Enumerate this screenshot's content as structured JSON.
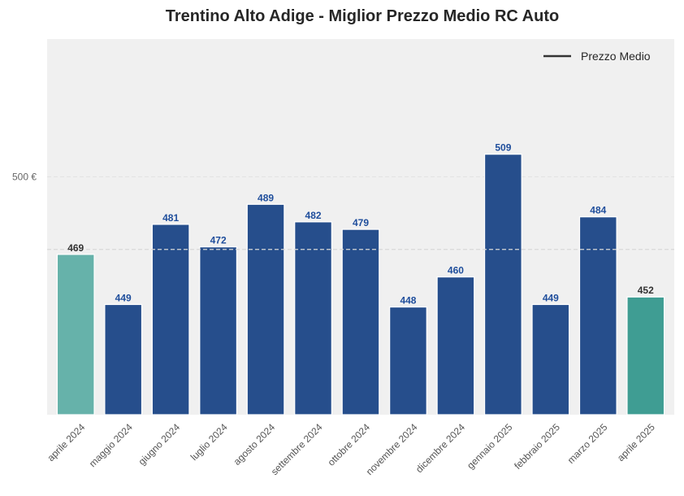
{
  "chart_data": {
    "type": "bar",
    "title": "Trentino Alto Adige - Miglior Prezzo Medio RC Auto",
    "xlabel": "",
    "ylabel": "",
    "categories": [
      "aprile 2024",
      "maggio 2024",
      "giugno 2024",
      "luglio 2024",
      "agosto 2024",
      "settembre 2024",
      "ottobre 2024",
      "novembre 2024",
      "dicembre 2024",
      "gennaio 2025",
      "febbraio 2025",
      "marzo 2025",
      "aprile 2025"
    ],
    "values": [
      469,
      449,
      481,
      472,
      489,
      482,
      479,
      448,
      460,
      509,
      449,
      484,
      452
    ],
    "value_labels": [
      "469",
      "449",
      "481",
      "472",
      "489",
      "482",
      "479",
      "448",
      "460",
      "509",
      "449",
      "484",
      "452"
    ],
    "bar_colors": [
      "#66b2aa",
      "#264e8c",
      "#264e8c",
      "#264e8c",
      "#264e8c",
      "#264e8c",
      "#264e8c",
      "#264e8c",
      "#264e8c",
      "#264e8c",
      "#264e8c",
      "#264e8c",
      "#3f9d93"
    ],
    "label_colors": [
      "#333333",
      "#1f4e9c",
      "#1f4e9c",
      "#1f4e9c",
      "#1f4e9c",
      "#1f4e9c",
      "#1f4e9c",
      "#1f4e9c",
      "#1f4e9c",
      "#1f4e9c",
      "#1f4e9c",
      "#1f4e9c",
      "#333333"
    ],
    "ylim": [
      405,
      555
    ],
    "yticks": [
      500
    ],
    "ytick_labels": [
      "500 €"
    ],
    "mean_line": {
      "name": "Prezzo Medio",
      "value": 471
    },
    "legend": {
      "placement": "top-right",
      "entries": [
        "Prezzo Medio"
      ]
    },
    "grid": true,
    "background": "#f0f0f0"
  }
}
